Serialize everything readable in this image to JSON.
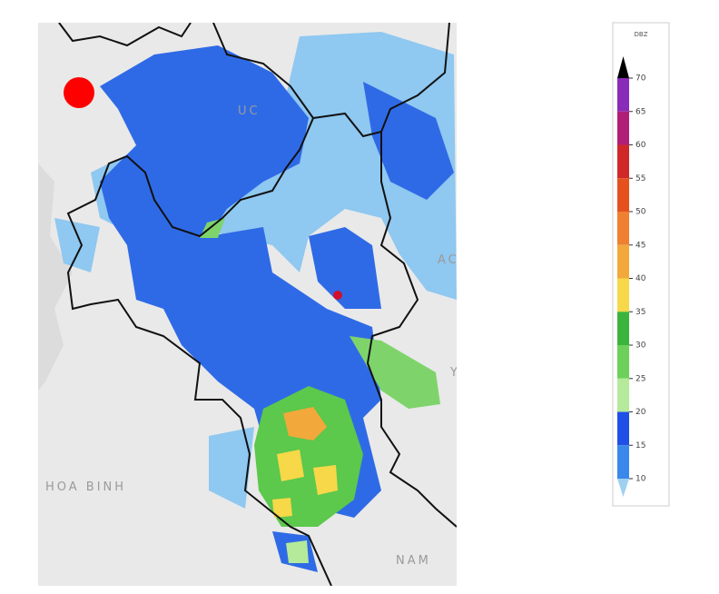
{
  "map": {
    "labels": [
      "UC",
      "AC",
      "Y",
      "HOA BINH",
      "NAM"
    ]
  },
  "legend": {
    "unit": "DBZ",
    "ticks": [
      70,
      65,
      60,
      55,
      50,
      45,
      40,
      35,
      30,
      25,
      20,
      15,
      10
    ],
    "segment_colors": [
      "#8a2ab8",
      "#b01e78",
      "#d02828",
      "#e4501e",
      "#ee8030",
      "#f2a83a",
      "#f6d848",
      "#3cb43c",
      "#6cd05a",
      "#b4ea9a",
      "#1e4fe6",
      "#3a88ea"
    ],
    "over_color": "#000000",
    "under_color": "#9fd0f0"
  }
}
